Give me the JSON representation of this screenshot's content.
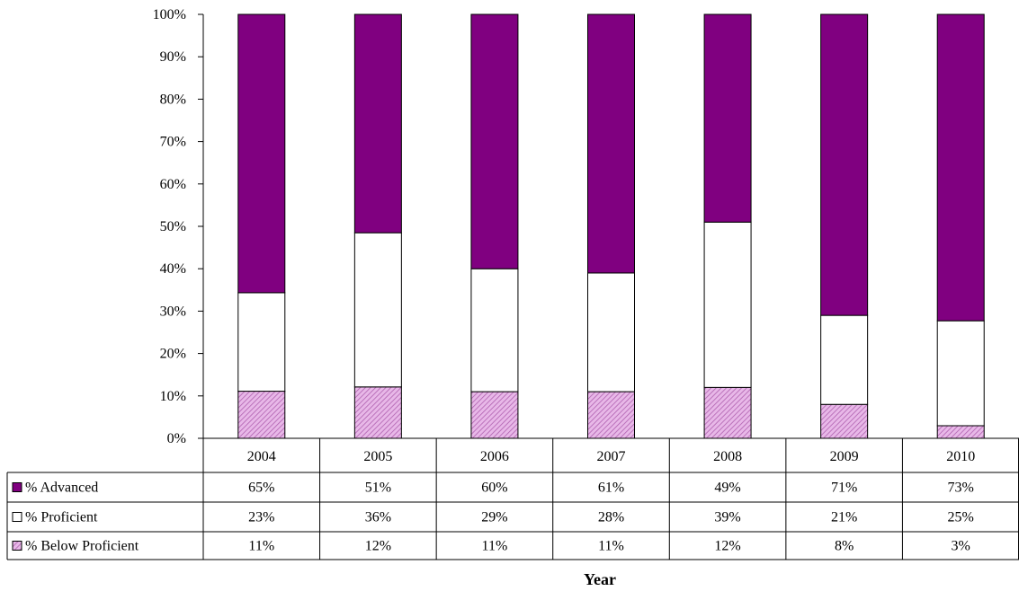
{
  "chart_data": {
    "type": "bar",
    "stacked": true,
    "percent_stacked": true,
    "categories": [
      "2004",
      "2005",
      "2006",
      "2007",
      "2008",
      "2009",
      "2010"
    ],
    "series": [
      {
        "name": "% Below Proficient",
        "values": [
          11,
          12,
          11,
          11,
          12,
          8,
          3
        ],
        "labels": [
          "11%",
          "12%",
          "11%",
          "11%",
          "12%",
          "8%",
          "3%"
        ],
        "color": "#d9a0d9",
        "pattern": "hatched"
      },
      {
        "name": "% Proficient",
        "values": [
          23,
          36,
          29,
          28,
          39,
          21,
          25
        ],
        "labels": [
          "23%",
          "36%",
          "29%",
          "28%",
          "39%",
          "21%",
          "25%"
        ],
        "color": "#ffffff"
      },
      {
        "name": "% Advanced",
        "values": [
          65,
          51,
          60,
          61,
          49,
          71,
          73
        ],
        "labels": [
          "65%",
          "51%",
          "60%",
          "61%",
          "49%",
          "71%",
          "73%"
        ],
        "color": "#800080"
      }
    ],
    "table_row_order": [
      "% Advanced",
      "% Proficient",
      "% Below Proficient"
    ],
    "y_ticks": [
      "0%",
      "10%",
      "20%",
      "30%",
      "40%",
      "50%",
      "60%",
      "70%",
      "80%",
      "90%",
      "100%"
    ],
    "ylim": [
      0,
      100
    ],
    "xlabel": "Year",
    "ylabel": "",
    "title": "",
    "grid": false,
    "legend": "data-table"
  }
}
